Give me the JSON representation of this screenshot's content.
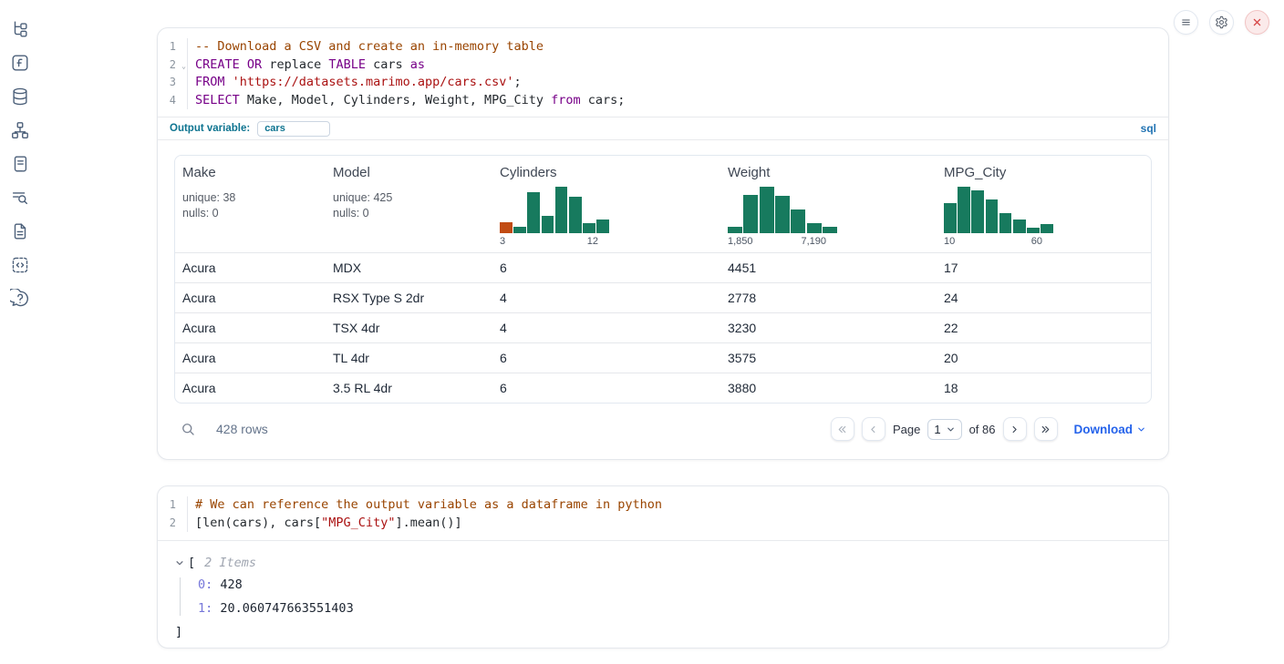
{
  "theme": {
    "accent_blue": "#2563eb",
    "teal_label": "#0e7490",
    "histogram_green": "#177a5e",
    "histogram_orange": "#c14b12",
    "syntax": {
      "keyword": "#770088",
      "string": "#aa1111",
      "comment": "#994400",
      "plain": "#24292e"
    }
  },
  "sidebar": {
    "items": [
      {
        "icon": "file-tree-icon"
      },
      {
        "icon": "functions-icon"
      },
      {
        "icon": "database-icon"
      },
      {
        "icon": "dependency-graph-icon"
      },
      {
        "icon": "scroll-icon"
      },
      {
        "icon": "list-search-icon"
      },
      {
        "icon": "document-icon"
      },
      {
        "icon": "snippets-icon"
      },
      {
        "icon": "help-icon"
      }
    ]
  },
  "topbar": {
    "buttons": [
      {
        "icon": "hamburger-icon",
        "danger": false
      },
      {
        "icon": "gear-icon",
        "danger": false
      },
      {
        "icon": "close-icon",
        "danger": true
      }
    ]
  },
  "cell1": {
    "code": [
      {
        "n": "1",
        "fold": false,
        "parts": [
          [
            "comment",
            "-- Download a CSV and create an in-memory table"
          ]
        ]
      },
      {
        "n": "2",
        "fold": true,
        "parts": [
          [
            "keyword",
            "CREATE"
          ],
          [
            "plain",
            " "
          ],
          [
            "keyword",
            "OR"
          ],
          [
            "plain",
            " replace "
          ],
          [
            "keyword",
            "TABLE"
          ],
          [
            "plain",
            " cars "
          ],
          [
            "keyword",
            "as"
          ]
        ]
      },
      {
        "n": "3",
        "fold": false,
        "parts": [
          [
            "keyword",
            "FROM"
          ],
          [
            "plain",
            " "
          ],
          [
            "string",
            "'https://datasets.marimo.app/cars.csv'"
          ],
          [
            "plain",
            ";"
          ]
        ]
      },
      {
        "n": "4",
        "fold": false,
        "parts": [
          [
            "keyword",
            "SELECT"
          ],
          [
            "plain",
            " Make, Model, Cylinders, Weight, MPG_City "
          ],
          [
            "keyword",
            "from"
          ],
          [
            "plain",
            " cars;"
          ]
        ]
      }
    ],
    "output_variable_label": "Output variable:",
    "output_variable_value": "cars",
    "language_badge": "sql"
  },
  "table": {
    "columns": [
      {
        "name": "Make",
        "stats": [
          "unique: 38",
          "nulls: 0"
        ]
      },
      {
        "name": "Model",
        "stats": [
          "unique: 425",
          "nulls: 0"
        ]
      },
      {
        "name": "Cylinders",
        "histogram": {
          "bars": [
            0.22,
            0.13,
            0.84,
            0.36,
            0.95,
            0.74,
            0.2,
            0.27
          ],
          "first_bar_orange": true,
          "min_label": "3",
          "max_label": "12"
        }
      },
      {
        "name": "Weight",
        "histogram": {
          "bars": [
            0.13,
            0.78,
            0.95,
            0.76,
            0.48,
            0.2,
            0.13
          ],
          "first_bar_orange": false,
          "min_label": "1,850",
          "max_label": "7,190"
        }
      },
      {
        "name": "MPG_City",
        "histogram": {
          "bars": [
            0.62,
            0.95,
            0.87,
            0.68,
            0.4,
            0.28,
            0.12,
            0.18
          ],
          "first_bar_orange": false,
          "min_label": "10",
          "max_label": "60"
        }
      }
    ],
    "rows": [
      [
        "Acura",
        "MDX",
        "6",
        "4451",
        "17"
      ],
      [
        "Acura",
        "RSX Type S 2dr",
        "4",
        "2778",
        "24"
      ],
      [
        "Acura",
        "TSX 4dr",
        "4",
        "3230",
        "22"
      ],
      [
        "Acura",
        "TL 4dr",
        "6",
        "3575",
        "20"
      ],
      [
        "Acura",
        "3.5 RL 4dr",
        "6",
        "3880",
        "18"
      ]
    ],
    "footer": {
      "row_count": "428 rows",
      "page_label": "Page",
      "page_value": "1",
      "page_total": "of 86",
      "download_label": "Download"
    }
  },
  "cell2": {
    "code": [
      {
        "n": "1",
        "fold": false,
        "parts": [
          [
            "comment",
            "# We can reference the output variable as a dataframe in python"
          ]
        ]
      },
      {
        "n": "2",
        "fold": false,
        "parts": [
          [
            "plain",
            "[len(cars), cars["
          ],
          [
            "string",
            "\"MPG_City\""
          ],
          [
            "plain",
            "].mean()]"
          ]
        ]
      }
    ],
    "output": {
      "open_bracket": "[",
      "items_label": "2 Items",
      "entries": [
        {
          "index": "0:",
          "value": "428"
        },
        {
          "index": "1:",
          "value": "20.060747663551403"
        }
      ],
      "close_bracket": "]"
    }
  }
}
